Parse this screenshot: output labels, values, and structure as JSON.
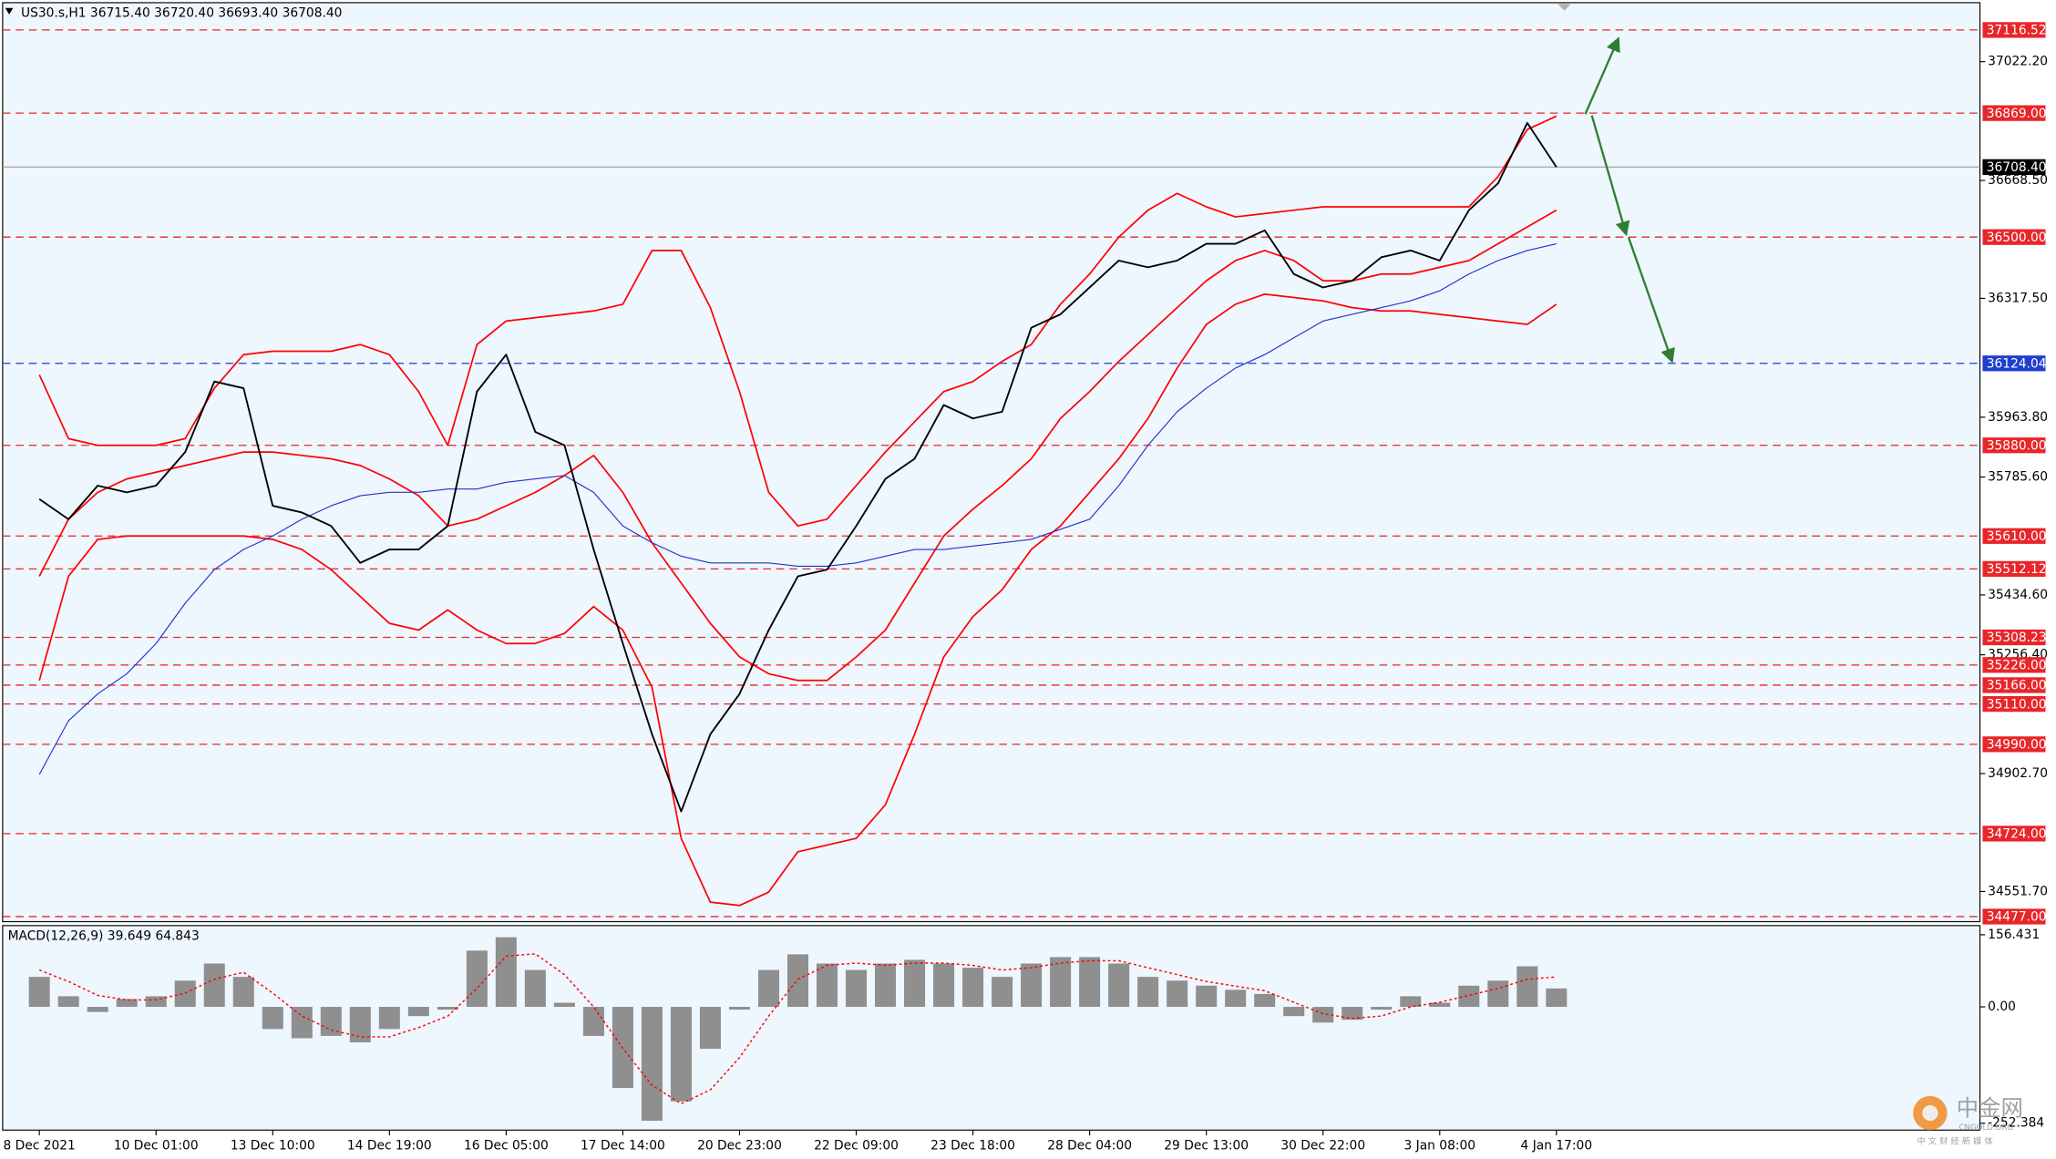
{
  "chart_data": [
    {
      "type": "line",
      "title": "US30.s,H1  36715.40 36720.40 36693.40 36708.40",
      "categories": [
        "8 Dec 2021",
        null,
        null,
        null,
        "10 Dec 01:00",
        null,
        null,
        null,
        "13 Dec 10:00",
        null,
        null,
        null,
        "14 Dec 19:00",
        null,
        null,
        null,
        "16 Dec 05:00",
        null,
        null,
        null,
        "17 Dec 14:00",
        null,
        null,
        null,
        "20 Dec 23:00",
        null,
        null,
        null,
        "22 Dec 09:00",
        null,
        null,
        null,
        "23 Dec 18:00",
        null,
        null,
        null,
        "28 Dec 04:00",
        null,
        null,
        null,
        "29 Dec 13:00",
        null,
        null,
        null,
        "30 Dec 22:00",
        null,
        null,
        null,
        "3 Jan 08:00",
        null,
        null,
        null,
        "4 Jan 17:00"
      ],
      "series": [
        {
          "color": "#ff0000",
          "width": 1.2,
          "values": [
            36090,
            35900,
            35880,
            35880,
            35880,
            35900,
            36050,
            36150,
            36160,
            36160,
            36160,
            36180,
            36150,
            36040,
            35880,
            36180,
            36250,
            36260,
            36270,
            36280,
            36300,
            36460,
            36460,
            36290,
            36040,
            35740,
            35640,
            35660,
            35760,
            35860,
            35950,
            36040,
            36070,
            36130,
            36180,
            36300,
            36390,
            36500,
            36580,
            36630,
            36590,
            36560,
            36570,
            36580,
            36590,
            36590,
            36590,
            36590,
            36590,
            36590,
            36680,
            36820,
            36860
          ]
        },
        {
          "color": "#ff0000",
          "width": 1.2,
          "values": [
            35490,
            35660,
            35740,
            35780,
            35800,
            35820,
            35840,
            35860,
            35860,
            35850,
            35840,
            35820,
            35780,
            35730,
            35640,
            35660,
            35700,
            35740,
            35790,
            35850,
            35740,
            35590,
            35470,
            35350,
            35250,
            35200,
            35180,
            35180,
            35250,
            35330,
            35470,
            35610,
            35690,
            35760,
            35840,
            35960,
            36040,
            36130,
            36210,
            36290,
            36370,
            36430,
            36460,
            36430,
            36370,
            36370,
            36390,
            36390,
            36410,
            36430,
            36480,
            36530,
            36580
          ]
        },
        {
          "color": "#ff0000",
          "width": 1.2,
          "values": [
            35180,
            35490,
            35600,
            35610,
            35610,
            35610,
            35610,
            35610,
            35600,
            35570,
            35510,
            35430,
            35350,
            35330,
            35390,
            35330,
            35290,
            35290,
            35320,
            35400,
            35330,
            35160,
            34710,
            34520,
            34510,
            34550,
            34670,
            34690,
            34710,
            34810,
            35020,
            35250,
            35370,
            35450,
            35570,
            35640,
            35740,
            35840,
            35960,
            36110,
            36240,
            36300,
            36330,
            36320,
            36310,
            36290,
            36280,
            36280,
            36270,
            36260,
            36250,
            36240,
            36300
          ]
        },
        {
          "color": "#2233cc",
          "width": 0.8,
          "values": [
            34900,
            35060,
            35140,
            35200,
            35290,
            35410,
            35510,
            35570,
            35610,
            35660,
            35700,
            35730,
            35740,
            35740,
            35750,
            35750,
            35770,
            35780,
            35790,
            35740,
            35640,
            35590,
            35550,
            35530,
            35530,
            35530,
            35520,
            35520,
            35530,
            35550,
            35570,
            35570,
            35580,
            35590,
            35600,
            35630,
            35660,
            35760,
            35880,
            35980,
            36050,
            36110,
            36150,
            36200,
            36250,
            36270,
            36290,
            36310,
            36340,
            36390,
            36430,
            36460,
            36480
          ]
        },
        {
          "color": "#000000",
          "width": 1.3,
          "values": [
            35720,
            35660,
            35760,
            35740,
            35760,
            35860,
            36070,
            36050,
            35700,
            35680,
            35640,
            35530,
            35570,
            35570,
            35640,
            36040,
            36150,
            35920,
            35880,
            35570,
            35290,
            35020,
            34790,
            35020,
            35140,
            35330,
            35490,
            35510,
            35640,
            35780,
            35840,
            36000,
            35960,
            35980,
            36230,
            36270,
            36350,
            36430,
            36410,
            36430,
            36480,
            36480,
            36520,
            36390,
            36350,
            36370,
            36440,
            36460,
            36430,
            36580,
            36660,
            36840,
            36708.4
          ]
        }
      ],
      "ylim": [
        34461.9,
        37197.8
      ],
      "yticks": [
        {
          "value": 37022.2,
          "label": "37022.20"
        },
        {
          "value": 36668.5,
          "label": "36668.50"
        },
        {
          "value": 36317.5,
          "label": "36317.50"
        },
        {
          "value": 35963.8,
          "label": "35963.80"
        },
        {
          "value": 35785.6,
          "label": "35785.60"
        },
        {
          "value": 35434.6,
          "label": "35434.60"
        },
        {
          "value": 35256.4,
          "label": "35256.40"
        },
        {
          "value": 34902.7,
          "label": "34902.70"
        },
        {
          "value": 34551.7,
          "label": "34551.70"
        }
      ],
      "levels": [
        37116.52,
        {
          "value": 36869,
          "label": "36869.00"
        },
        {
          "value": 36500,
          "label": "36500.00"
        },
        {
          "value": 35880,
          "label": "35880.00"
        },
        {
          "value": 35610,
          "label": "35610.00"
        },
        35512.12,
        35308.23,
        {
          "value": 35226,
          "label": "35226.00"
        },
        {
          "value": 35166,
          "label": "35166.00"
        },
        {
          "value": 35110,
          "label": "35110.00"
        },
        {
          "value": 34990,
          "label": "34990.00"
        },
        {
          "value": 34724,
          "label": "34724.00"
        },
        {
          "value": 34477,
          "label": "34477.00"
        }
      ],
      "level_color": "#e8262a",
      "pivot_level": 36124.04,
      "pivot_color": "#1f3fcf",
      "last_price": {
        "value": 36708.4,
        "label": "36708.40"
      }
    },
    {
      "type": "macd",
      "title": "MACD(12,26,9) 39.649 64.843",
      "histogram": {
        "color": "#8f8f8f",
        "values": [
          65,
          23,
          -11,
          17,
          23,
          57,
          94,
          65,
          -48,
          -68,
          -63,
          -77,
          -48,
          -20,
          -6,
          122,
          151,
          80,
          9,
          -63,
          -176,
          -247,
          -205,
          -91,
          -6,
          80,
          114,
          94,
          80,
          94,
          102,
          94,
          85,
          65,
          94,
          108,
          108,
          94,
          65,
          57,
          46,
          37,
          28,
          -20,
          -34,
          -28,
          -6,
          23,
          9,
          46,
          57,
          88,
          40
        ]
      },
      "signal": {
        "color": "#ff0000",
        "values": [
          80,
          55,
          25,
          15,
          15,
          30,
          60,
          75,
          30,
          -20,
          -50,
          -65,
          -65,
          -45,
          -20,
          40,
          110,
          115,
          70,
          0,
          -90,
          -170,
          -210,
          -180,
          -110,
          -20,
          60,
          90,
          95,
          90,
          95,
          95,
          90,
          80,
          85,
          95,
          100,
          100,
          85,
          70,
          55,
          45,
          35,
          10,
          -15,
          -25,
          -20,
          0,
          10,
          25,
          40,
          60,
          65
        ]
      },
      "ylim": [
        -267.3,
        176.3
      ],
      "yticks": [
        156.431,
        {
          "value": 0,
          "label": "0.00"
        },
        -252.384
      ]
    }
  ],
  "watermark": {
    "name": "中金网",
    "site": "CNGOLD.ORG",
    "tagline": "中 文 财 经 新 媒 体"
  }
}
